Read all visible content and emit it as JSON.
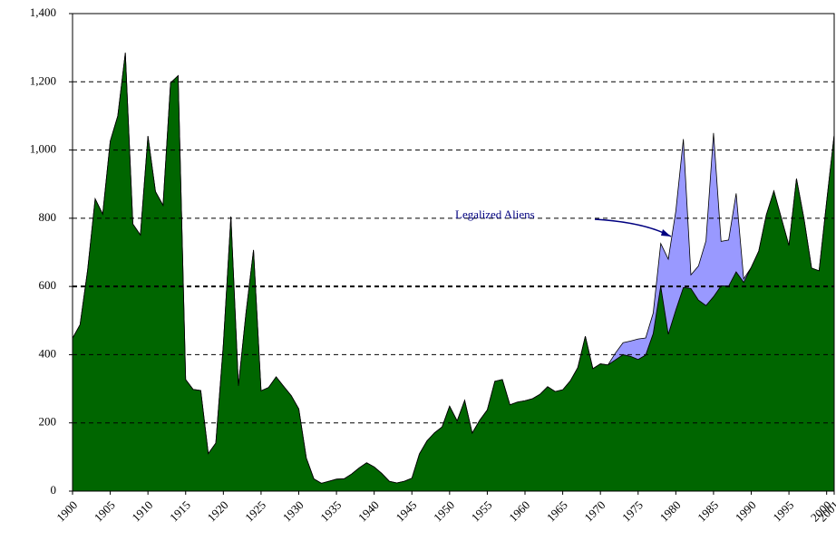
{
  "chart_data": {
    "type": "stacked-area",
    "x": [
      1900,
      1901,
      1902,
      1903,
      1904,
      1905,
      1906,
      1907,
      1908,
      1909,
      1910,
      1911,
      1912,
      1913,
      1914,
      1915,
      1916,
      1917,
      1918,
      1919,
      1920,
      1921,
      1922,
      1923,
      1924,
      1925,
      1926,
      1927,
      1928,
      1929,
      1930,
      1931,
      1932,
      1933,
      1934,
      1935,
      1936,
      1937,
      1938,
      1939,
      1940,
      1941,
      1942,
      1943,
      1944,
      1945,
      1946,
      1947,
      1948,
      1949,
      1950,
      1951,
      1952,
      1953,
      1954,
      1955,
      1956,
      1957,
      1958,
      1959,
      1960,
      1961,
      1962,
      1963,
      1964,
      1965,
      1966,
      1967,
      1968,
      1969,
      1970,
      1971,
      1972,
      1973,
      1974,
      1975,
      1976,
      1977,
      1978,
      1979,
      1980,
      1981,
      1982,
      1983,
      1984,
      1985,
      1986,
      1987,
      1988,
      1989,
      1990,
      1991,
      1992,
      1993,
      1994,
      1995,
      1996,
      1997,
      1998,
      1999,
      2000,
      2001
    ],
    "series": [
      {
        "color": "#006600",
        "values": [
          448,
          488,
          648,
          857,
          812,
          1026,
          1100,
          1285,
          783,
          751,
          1041,
          878,
          838,
          1197,
          1218,
          327,
          298,
          295,
          110,
          141,
          430,
          805,
          309,
          522,
          707,
          294,
          304,
          335,
          307,
          280,
          241,
          97,
          36,
          23,
          29,
          35,
          36,
          50,
          68,
          83,
          71,
          52,
          29,
          24,
          29,
          38,
          109,
          147,
          171,
          188,
          249,
          206,
          266,
          170,
          208,
          238,
          322,
          327,
          253,
          261,
          265,
          271,
          284,
          306,
          292,
          297,
          323,
          362,
          454,
          359,
          373,
          370,
          385,
          400,
          395,
          386,
          399,
          462,
          601,
          460,
          531,
          597,
          594,
          560,
          544,
          570,
          602,
          601,
          643,
          612,
          656,
          704,
          810,
          880,
          800,
          720,
          916,
          798,
          654,
          646,
          849,
          1045
        ]
      },
      {
        "name": "Legalized Aliens",
        "color": "#9999ff",
        "values": [
          0,
          0,
          0,
          0,
          0,
          0,
          0,
          0,
          0,
          0,
          0,
          0,
          0,
          0,
          0,
          0,
          0,
          0,
          0,
          0,
          0,
          0,
          0,
          0,
          0,
          0,
          0,
          0,
          0,
          0,
          0,
          0,
          0,
          0,
          0,
          0,
          0,
          0,
          0,
          0,
          0,
          0,
          0,
          0,
          0,
          0,
          0,
          0,
          0,
          0,
          0,
          0,
          0,
          0,
          0,
          0,
          0,
          0,
          0,
          0,
          0,
          0,
          0,
          0,
          0,
          0,
          0,
          0,
          0,
          0,
          0,
          0,
          20,
          35,
          45,
          60,
          50,
          60,
          125,
          220,
          290,
          435,
          40,
          100,
          190,
          480,
          130,
          135,
          230,
          10,
          0,
          0,
          0,
          0,
          0,
          0,
          0,
          0,
          0,
          0,
          0,
          0
        ]
      }
    ],
    "xlim": [
      1900,
      2001
    ],
    "xticks": [
      1900,
      1905,
      1910,
      1915,
      1920,
      1925,
      1930,
      1935,
      1940,
      1945,
      1950,
      1955,
      1960,
      1965,
      1970,
      1975,
      1980,
      1985,
      1990,
      1995,
      2000,
      2001
    ],
    "ylim": [
      0,
      1400
    ],
    "yticks": [
      0,
      200,
      400,
      600,
      800,
      {
        "value": 1000,
        "label": "1,000"
      },
      {
        "value": 1200,
        "label": "1,200"
      },
      {
        "value": 1400,
        "label": "1,400"
      }
    ],
    "grid": true
  }
}
